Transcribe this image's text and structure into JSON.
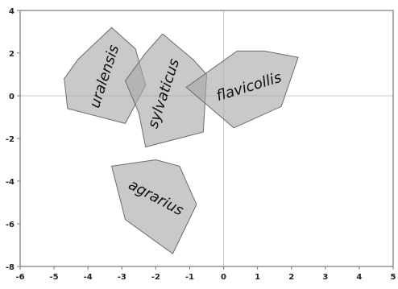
{
  "chart_data": {
    "type": "scatter",
    "title": "",
    "xlabel": "",
    "ylabel": "",
    "xlim": [
      -6,
      5
    ],
    "ylim": [
      -8,
      4
    ],
    "xticks": [
      -6,
      -5,
      -4,
      -3,
      -2,
      -1,
      0,
      1,
      2,
      3,
      4,
      5
    ],
    "yticks": [
      4,
      2,
      0,
      -2,
      -4,
      -6,
      -8
    ],
    "grid": false,
    "reference_lines": {
      "x": 0,
      "y": 0
    },
    "groups": [
      {
        "name": "uralensis",
        "hull": [
          [
            -3.3,
            3.2
          ],
          [
            -2.6,
            2.2
          ],
          [
            -2.3,
            0.5
          ],
          [
            -2.9,
            -1.3
          ],
          [
            -4.6,
            -0.6
          ],
          [
            -4.7,
            0.8
          ],
          [
            -4.3,
            1.7
          ]
        ],
        "label_anchor": [
          -3.5,
          0.9
        ],
        "label_rotation": -72
      },
      {
        "name": "sylvaticus",
        "hull": [
          [
            -1.8,
            2.9
          ],
          [
            -0.9,
            1.7
          ],
          [
            -0.5,
            1.0
          ],
          [
            -0.6,
            -1.7
          ],
          [
            -2.3,
            -2.4
          ],
          [
            -2.5,
            -0.8
          ],
          [
            -2.9,
            0.7
          ],
          [
            -2.3,
            2.0
          ]
        ],
        "label_anchor": [
          -1.75,
          0.1
        ],
        "label_rotation": -72
      },
      {
        "name": "flavicollis",
        "hull": [
          [
            0.4,
            2.1
          ],
          [
            1.2,
            2.1
          ],
          [
            2.2,
            1.8
          ],
          [
            1.7,
            -0.5
          ],
          [
            0.3,
            -1.5
          ],
          [
            -1.1,
            0.4
          ]
        ],
        "label_anchor": [
          0.75,
          0.4
        ],
        "label_rotation": -17
      },
      {
        "name": "agrarius",
        "hull": [
          [
            -3.3,
            -3.3
          ],
          [
            -2.0,
            -3.0
          ],
          [
            -1.3,
            -3.3
          ],
          [
            -0.8,
            -5.1
          ],
          [
            -1.5,
            -7.4
          ],
          [
            -2.9,
            -5.8
          ]
        ],
        "label_anchor": [
          -2.0,
          -4.8
        ],
        "label_rotation": 28
      }
    ]
  },
  "colors": {
    "hull_fill": "#a8a8a8",
    "hull_stroke": "#6b6b6b",
    "axis": "#777777",
    "reference_line": "#c8c8c8",
    "tick_text": "#222222"
  }
}
